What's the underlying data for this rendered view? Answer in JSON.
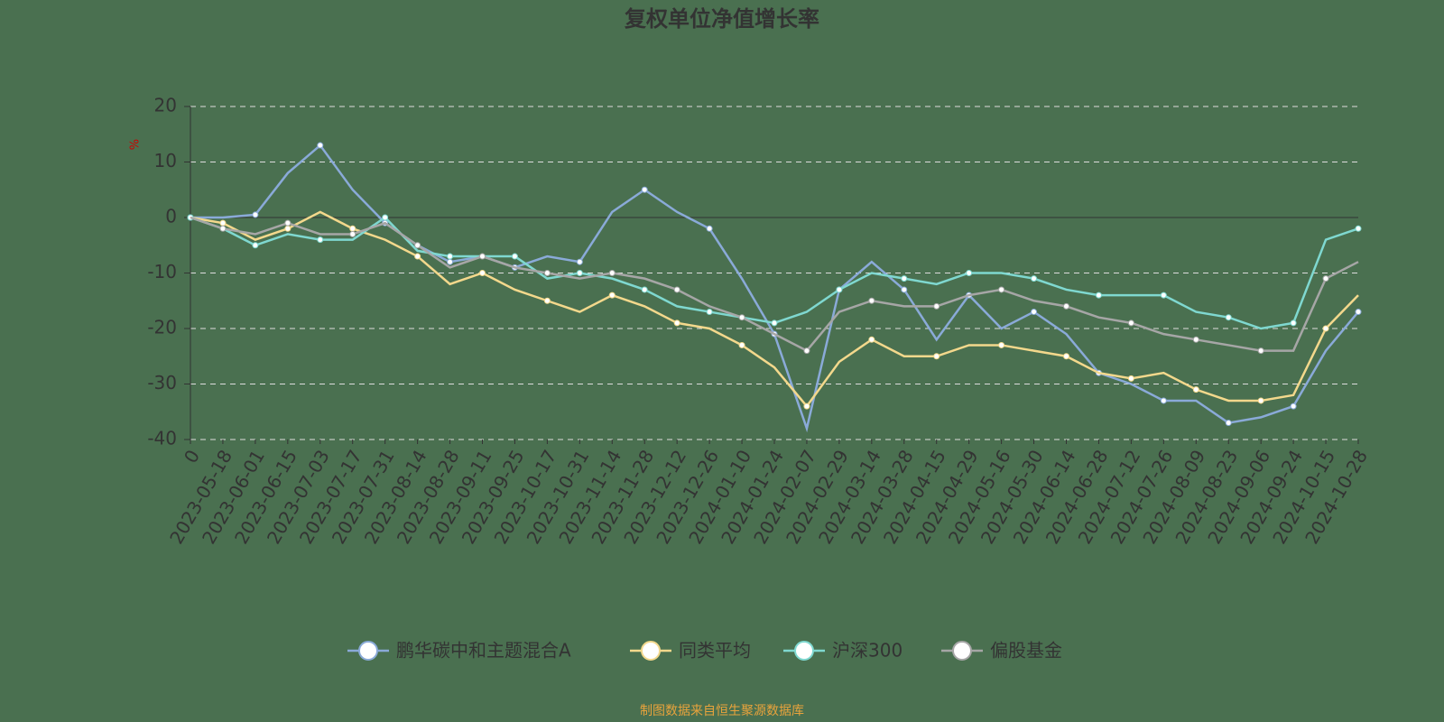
{
  "chart_data": {
    "type": "line",
    "title": "复权单位净值增长率",
    "ylabel": "%",
    "source": "制图数据来自恒生聚源数据库",
    "categories": [
      "0",
      "2023-05-18",
      "2023-06-01",
      "2023-06-15",
      "2023-07-03",
      "2023-07-17",
      "2023-07-31",
      "2023-08-14",
      "2023-08-28",
      "2023-09-11",
      "2023-09-25",
      "2023-10-17",
      "2023-10-31",
      "2023-11-14",
      "2023-11-28",
      "2023-12-12",
      "2023-12-26",
      "2024-01-10",
      "2024-01-24",
      "2024-02-07",
      "2024-02-29",
      "2024-03-14",
      "2024-03-28",
      "2024-04-15",
      "2024-04-29",
      "2024-05-16",
      "2024-05-30",
      "2024-06-14",
      "2024-06-28",
      "2024-07-12",
      "2024-07-26",
      "2024-08-09",
      "2024-08-23",
      "2024-09-06",
      "2024-09-24",
      "2024-10-15",
      "2024-10-28"
    ],
    "series": [
      {
        "name": "鹏华碳中和主题混合A",
        "color": "#8aaad8",
        "values": [
          0,
          0,
          0.5,
          8,
          13,
          5,
          -1,
          -5,
          -8,
          -7,
          -9,
          -7,
          -8,
          1,
          5,
          1,
          -2,
          -11,
          -21,
          -38,
          -13,
          -8,
          -13,
          -22,
          -14,
          -20,
          -17,
          -21,
          -28,
          -30,
          -33,
          -33,
          -37,
          -36,
          -34,
          -24,
          -17
        ]
      },
      {
        "name": "同类平均",
        "color": "#f3d88c",
        "values": [
          0,
          -1,
          -4,
          -2,
          1,
          -2,
          -4,
          -7,
          -12,
          -10,
          -13,
          -15,
          -17,
          -14,
          -16,
          -19,
          -20,
          -23,
          -27,
          -34,
          -26,
          -22,
          -25,
          -25,
          -23,
          -23,
          -24,
          -25,
          -28,
          -29,
          -28,
          -31,
          -33,
          -33,
          -32,
          -20,
          -14
        ]
      },
      {
        "name": "沪深300",
        "color": "#7fd8d0",
        "values": [
          0,
          -2,
          -5,
          -3,
          -4,
          -4,
          0,
          -6,
          -7,
          -7,
          -7,
          -11,
          -10,
          -11,
          -13,
          -16,
          -17,
          -18,
          -19,
          -17,
          -13,
          -10,
          -11,
          -12,
          -10,
          -10,
          -11,
          -13,
          -14,
          -14,
          -14,
          -17,
          -18,
          -20,
          -19,
          -4,
          -2
        ]
      },
      {
        "name": "偏股基金",
        "color": "#a6a6a6",
        "values": [
          0,
          -2,
          -3,
          -1,
          -3,
          -3,
          -1,
          -5,
          -9,
          -7,
          -9,
          -10,
          -11,
          -10,
          -11,
          -13,
          -16,
          -18,
          -21,
          -24,
          -17,
          -15,
          -16,
          -16,
          -14,
          -13,
          -15,
          -16,
          -18,
          -19,
          -21,
          -22,
          -23,
          -24,
          -24,
          -11,
          -8
        ]
      }
    ],
    "ylim": [
      -40,
      20
    ],
    "yticks": [
      -40,
      -30,
      -20,
      -10,
      0,
      10,
      20
    ],
    "grid": true
  }
}
